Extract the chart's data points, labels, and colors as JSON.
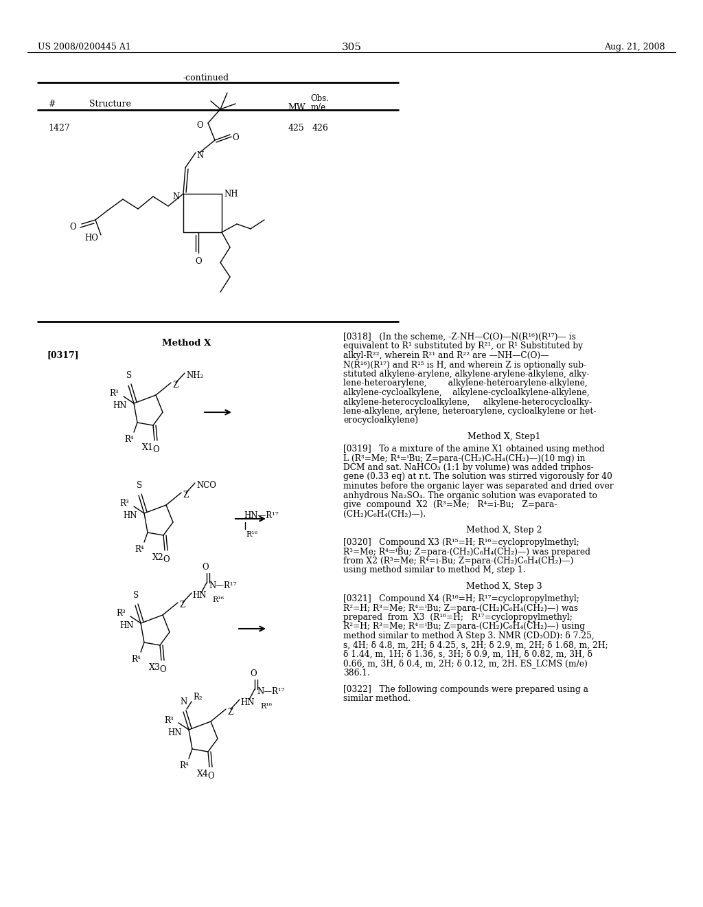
{
  "page_number": "305",
  "patent_number": "US 2008/0200445 A1",
  "patent_date": "Aug. 21, 2008",
  "background_color": "#ffffff",
  "text_color": "#000000",
  "continued_label": "-continued",
  "num_1427": "1427",
  "mw_1427": "425",
  "obs_1427": "426",
  "method_x_label": "Method X",
  "paragraph_0317": "[0317]",
  "p0318_lines": [
    "[0318]   (In the scheme, -Z-NH—C(O)—N(R¹⁶)(R¹⁷)— is",
    "equivalent to R¹ substituted by R²¹, or R¹ Substituted by",
    "alkyl-R²², wherein R²¹ and R²² are —NH—C(O)—",
    "N(R¹⁶)(R¹⁷) and R¹⁵ is H, and wherein Z is optionally sub-",
    "stituted alkylene-arylene, alkylene-arylene-alkylene, alky-",
    "lene-heteroarylene,        alkylene-heteroarylene-alkylene,",
    "alkylene-cycloalkylene,    alkylene-cycloalkylene-alkylene,",
    "alkylene-heterocycloalkylene,     alkylene-heterocycloalky-",
    "lene-alkylene, arylene, heteroarylene, cycloalkylene or het-",
    "erocycloalkylene)"
  ],
  "step1_title": "Method X, Step1",
  "p0319_lines": [
    "[0319]   To a mixture of the amine X1 obtained using method",
    "L (R³=Me; R⁴=ⁱBu; Z=para-(CH₂)C₆H₄(CH₂)—)(10 mg) in",
    "DCM and sat. NaHCO₃ (1:1 by volume) was added triphos-",
    "gene (0.33 eq) at r.t. The solution was stirred vigorously for 40",
    "minutes before the organic layer was separated and dried over",
    "anhydrous Na₂SO₄. The organic solution was evaporated to",
    "give  compound  X2  (R³=Me;   R⁴=i-Bu;   Z=para-",
    "(CH₂)C₆H₄(CH₂)—)."
  ],
  "step2_title": "Method X, Step 2",
  "p0320_lines": [
    "[0320]   Compound X3 (R¹⁵=H; R¹⁶=cyclopropylmethyl;",
    "R³=Me; R⁴=ⁱBu; Z=para-(CH₂)C₆H₄(CH₂)—) was prepared",
    "from X2 (R³=Me; R⁴=i-Bu; Z=para-(CH₂)C₆H₄(CH₂)—)",
    "using method similar to method M, step 1."
  ],
  "step3_title": "Method X, Step 3",
  "p0321_lines": [
    "[0321]   Compound X4 (R¹⁶=H; R¹⁷=cyclopropylmethyl;",
    "R²=H; R³=Me; R⁴=ⁱBu; Z=para-(CH₂)C₆H₄(CH₂)—) was",
    "prepared  from  X3  (R¹⁶=H;   R¹⁷=cyclopropylmethyl;",
    "R²=H; R³=Me; R⁴=ⁱBu; Z=para-(CH₂)C₆H₄(CH₂)—) using",
    "method similar to method A Step 3. NMR (CD₃OD): δ 7.25,",
    "s, 4H; δ 4.8, m, 2H; δ 4.25, s, 2H; δ 2.9, m, 2H; δ 1.68, m, 2H;",
    "δ 1.44, m, 1H; δ 1.36, s, 3H; δ 0.9, m, 1H, δ 0.82, m, 3H, δ",
    "0.66, m, 3H, δ 0.4, m, 2H; δ 0.12, m, 2H. ES_LCMS (m/e)",
    "386.1."
  ],
  "p0322_lines": [
    "[0322]   The following compounds were prepared using a",
    "similar method."
  ]
}
